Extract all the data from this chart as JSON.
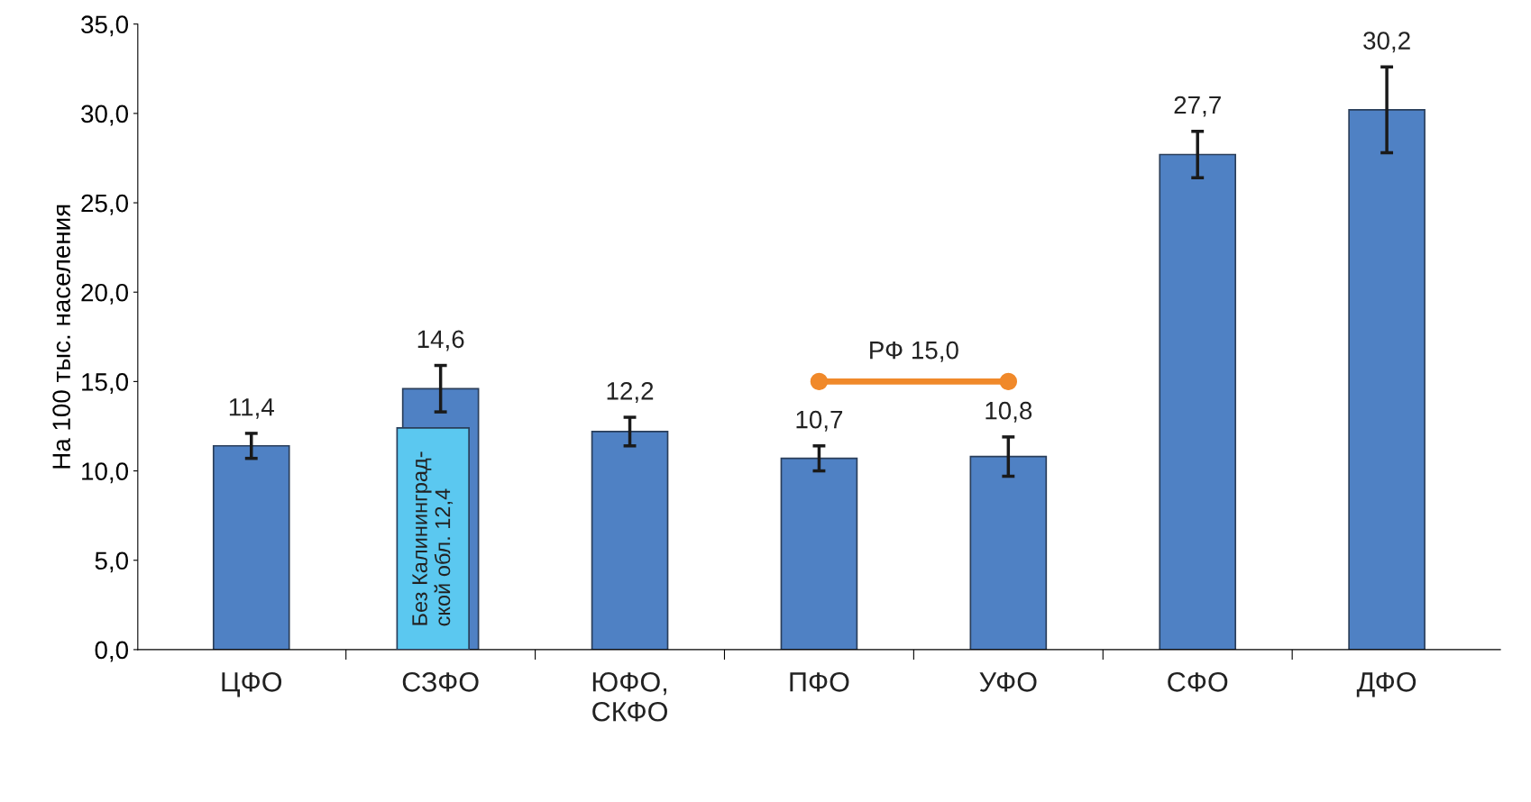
{
  "chart_data": {
    "type": "bar",
    "ylabel": "На 100 тыс. населения",
    "categories": [
      "ЦФО",
      "СЗФО",
      "ЮФО,\nСКФО",
      "ПФО",
      "УФО",
      "СФО",
      "ДФО"
    ],
    "series": [
      {
        "color": "#4f81c4",
        "values": [
          11.4,
          14.6,
          12.2,
          10.7,
          10.8,
          27.7,
          30.2
        ],
        "errors": [
          0.7,
          1.3,
          0.8,
          0.7,
          1.1,
          1.3,
          2.4
        ],
        "value_labels": [
          "11,4",
          "14,6",
          "12,2",
          "10,7",
          "10,8",
          "27,7",
          "30,2"
        ]
      },
      {
        "name": "Без Калининград-\nской обл. 12,4",
        "type": "bar",
        "color": "#5bc8f0",
        "values": [
          null,
          12.4,
          null,
          null,
          null,
          null,
          null
        ]
      },
      {
        "name": "РФ 15,0",
        "type": "line",
        "color": "#f0892a",
        "marker": "circle",
        "values": [
          null,
          null,
          null,
          15.0,
          15.0,
          null,
          null
        ]
      }
    ],
    "ylim": [
      0,
      35
    ],
    "yticks": [
      {
        "value": 0,
        "label": "0,0"
      },
      {
        "value": 5,
        "label": "5,0"
      },
      {
        "value": 10,
        "label": "10,0"
      },
      {
        "value": 15,
        "label": "15,0"
      },
      {
        "value": 20,
        "label": "20,0"
      },
      {
        "value": 25,
        "label": "25,0"
      },
      {
        "value": 30,
        "label": "30,0"
      },
      {
        "value": 35,
        "label": "35,0"
      }
    ],
    "grid": false,
    "legend": false
  }
}
